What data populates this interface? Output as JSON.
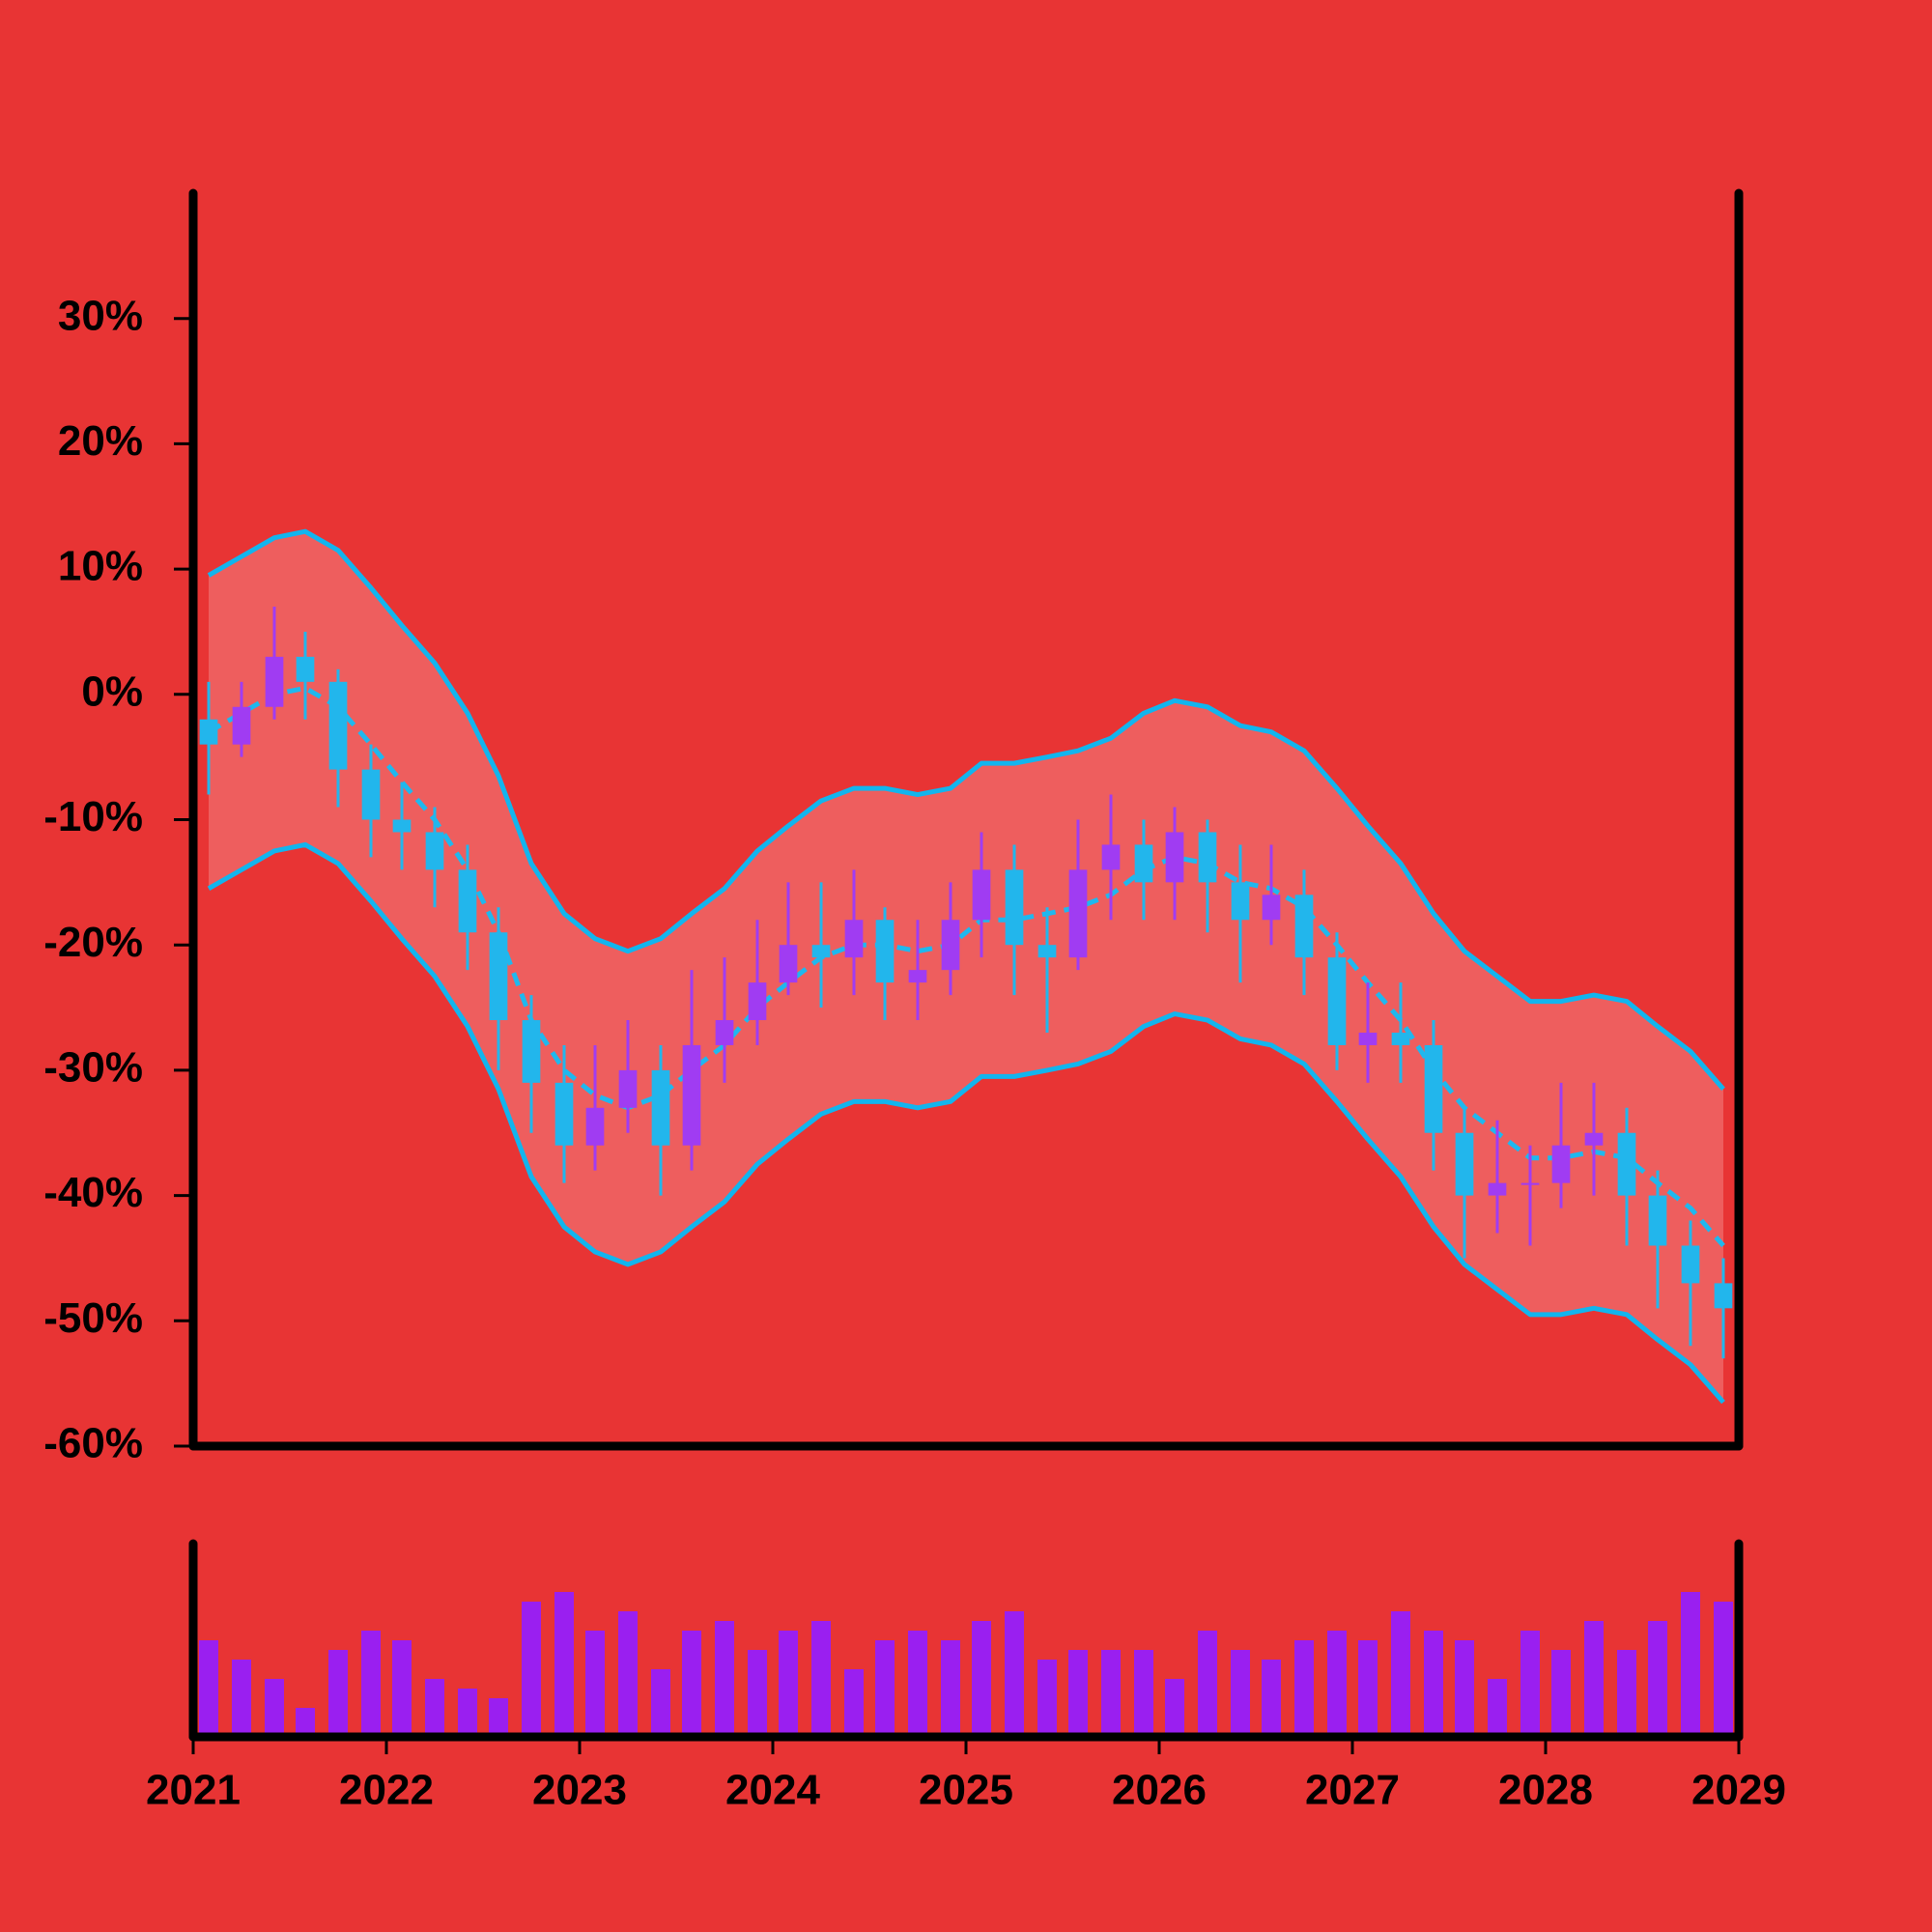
{
  "chart_data": {
    "type": "candlestick",
    "x": [
      2021.08,
      2021.25,
      2021.42,
      2021.58,
      2021.75,
      2021.92,
      2022.08,
      2022.25,
      2022.42,
      2022.58,
      2022.75,
      2022.92,
      2023.08,
      2023.25,
      2023.42,
      2023.58,
      2023.75,
      2023.92,
      2024.08,
      2024.25,
      2024.42,
      2024.58,
      2024.75,
      2024.92,
      2025.08,
      2025.25,
      2025.42,
      2025.58,
      2025.75,
      2025.92,
      2026.08,
      2026.25,
      2026.42,
      2026.58,
      2026.75,
      2026.92,
      2027.08,
      2027.25,
      2027.42,
      2027.58,
      2027.75,
      2027.92,
      2028.08,
      2028.25,
      2028.42,
      2028.58,
      2028.75,
      2028.92
    ],
    "open": [
      -2,
      -4,
      -1,
      3,
      1,
      -6,
      -10,
      -11,
      -14,
      -19,
      -26,
      -31,
      -36,
      -33,
      -30,
      -36,
      -28,
      -26,
      -23,
      -20,
      -21,
      -18,
      -23,
      -22,
      -18,
      -14,
      -20,
      -21,
      -14,
      -12,
      -15,
      -11,
      -15,
      -18,
      -16,
      -21,
      -28,
      -27,
      -28,
      -35,
      -40,
      -39,
      -39,
      -36,
      -35,
      -40,
      -44,
      -47
    ],
    "high": [
      1,
      1,
      7,
      5,
      2,
      -4,
      -7,
      -9,
      -12,
      -17,
      -24,
      -28,
      -28,
      -26,
      -28,
      -22,
      -21,
      -18,
      -15,
      -15,
      -14,
      -17,
      -18,
      -15,
      -11,
      -12,
      -17,
      -10,
      -8,
      -10,
      -9,
      -10,
      -12,
      -12,
      -14,
      -19,
      -23,
      -23,
      -26,
      -33,
      -34,
      -36,
      -31,
      -31,
      -33,
      -38,
      -42,
      -45
    ],
    "low": [
      -8,
      -5,
      -2,
      -2,
      -9,
      -13,
      -14,
      -17,
      -22,
      -30,
      -35,
      -39,
      -38,
      -35,
      -40,
      -38,
      -31,
      -28,
      -24,
      -25,
      -24,
      -26,
      -26,
      -24,
      -21,
      -24,
      -27,
      -22,
      -18,
      -18,
      -18,
      -19,
      -23,
      -20,
      -24,
      -30,
      -31,
      -31,
      -38,
      -45,
      -43,
      -44,
      -41,
      -40,
      -44,
      -49,
      -52,
      -53
    ],
    "close": [
      -4,
      -1,
      3,
      1,
      -6,
      -10,
      -11,
      -14,
      -19,
      -26,
      -31,
      -36,
      -33,
      -30,
      -36,
      -28,
      -26,
      -23,
      -20,
      -21,
      -18,
      -23,
      -22,
      -18,
      -14,
      -20,
      -21,
      -14,
      -12,
      -15,
      -11,
      -15,
      -18,
      -16,
      -21,
      -28,
      -27,
      -28,
      -35,
      -40,
      -39,
      -39,
      -36,
      -35,
      -40,
      -44,
      -47,
      -49
    ],
    "up_color": "#a03cf2",
    "down_color": "#22b6ec",
    "bands": {
      "fill": "#ee5e5e",
      "upper": {
        "color": "#12b5ee",
        "values": [
          9.5,
          11,
          12.5,
          13,
          11.5,
          8.5,
          5.5,
          2.5,
          -1.5,
          -6.5,
          -13.5,
          -17.5,
          -19.5,
          -20.5,
          -19.5,
          -17.5,
          -15.5,
          -12.5,
          -10.5,
          -8.5,
          -7.5,
          -7.5,
          -8,
          -7.5,
          -5.5,
          -5.5,
          -5,
          -4.5,
          -3.5,
          -1.5,
          -0.5,
          -1,
          -2.5,
          -3,
          -4.5,
          -7.5,
          -10.5,
          -13.5,
          -17.5,
          -20.5,
          -22.5,
          -24.5,
          -24.5,
          -24,
          -24.5,
          -26.5,
          -28.5,
          -31.5
        ]
      },
      "middle": {
        "color": "#1fb8ee",
        "dashed": true,
        "values": [
          -3,
          -1.5,
          0,
          0.5,
          -1,
          -4,
          -7,
          -10,
          -14,
          -19,
          -26,
          -30,
          -32,
          -33,
          -32,
          -30,
          -28,
          -25,
          -23,
          -21,
          -20,
          -20,
          -20.5,
          -20,
          -18,
          -18,
          -17.5,
          -17,
          -16,
          -14,
          -13,
          -13.5,
          -15,
          -15.5,
          -17,
          -20,
          -23,
          -26,
          -30,
          -33,
          -35,
          -37,
          -37,
          -36.5,
          -37,
          -39,
          -41,
          -44
        ]
      },
      "lower": {
        "color": "#12b5ee",
        "values": [
          -15.5,
          -14,
          -12.5,
          -12,
          -13.5,
          -16.5,
          -19.5,
          -22.5,
          -26.5,
          -31.5,
          -38.5,
          -42.5,
          -44.5,
          -45.5,
          -44.5,
          -42.5,
          -40.5,
          -37.5,
          -35.5,
          -33.5,
          -32.5,
          -32.5,
          -33,
          -32.5,
          -30.5,
          -30.5,
          -30,
          -29.5,
          -28.5,
          -26.5,
          -25.5,
          -26,
          -27.5,
          -28,
          -29.5,
          -32.5,
          -35.5,
          -38.5,
          -42.5,
          -45.5,
          -47.5,
          -49.5,
          -49.5,
          -49,
          -49.5,
          -51.5,
          -53.5,
          -56.5
        ]
      }
    },
    "volume": {
      "color": "#9a1ff0",
      "ylim": [
        0,
        100
      ],
      "values": [
        50,
        40,
        30,
        15,
        45,
        55,
        50,
        30,
        25,
        20,
        70,
        75,
        55,
        65,
        35,
        55,
        60,
        45,
        55,
        60,
        35,
        50,
        55,
        50,
        60,
        65,
        40,
        45,
        45,
        45,
        30,
        55,
        45,
        40,
        50,
        55,
        50,
        65,
        55,
        50,
        30,
        55,
        45,
        60,
        45,
        60,
        75,
        70
      ]
    },
    "xlim": [
      2021,
      2029
    ],
    "xticks": [
      2021,
      2022,
      2023,
      2024,
      2025,
      2026,
      2027,
      2028,
      2029
    ],
    "ylim": [
      -60,
      40
    ],
    "yticks": [
      {
        "value": -60,
        "label": "-60%"
      },
      {
        "value": -50,
        "label": "-50%"
      },
      {
        "value": -40,
        "label": "-40%"
      },
      {
        "value": -30,
        "label": "-30%"
      },
      {
        "value": -20,
        "label": "-20%"
      },
      {
        "value": -10,
        "label": "-10%"
      },
      {
        "value": 0,
        "label": "0%"
      },
      {
        "value": 10,
        "label": "10%"
      },
      {
        "value": 20,
        "label": "20%"
      },
      {
        "value": 30,
        "label": "30%"
      }
    ]
  }
}
